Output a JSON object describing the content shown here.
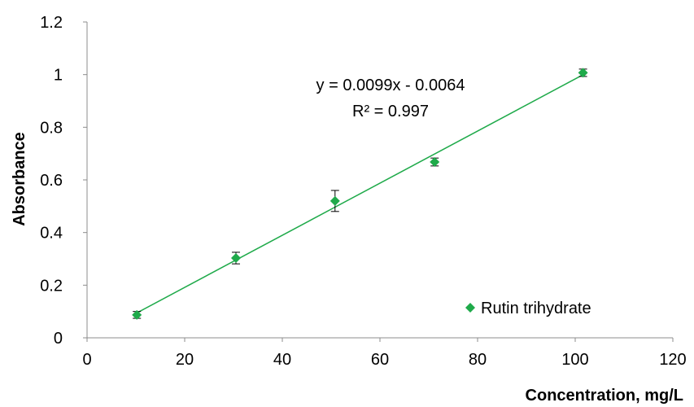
{
  "chart_data": {
    "type": "scatter",
    "xlabel": "Concentration, mg/L",
    "ylabel": "Absorbance",
    "xlim": [
      0,
      120
    ],
    "ylim": [
      0,
      1.2
    ],
    "xticks": [
      0,
      20,
      40,
      60,
      80,
      100,
      120
    ],
    "yticks": [
      0,
      0.2,
      0.4,
      0.6,
      0.8,
      1,
      1.2
    ],
    "xtick_labels": [
      "0",
      "20",
      "40",
      "60",
      "80",
      "100",
      "120"
    ],
    "ytick_labels": [
      "0",
      "0.2",
      "0.4",
      "0.6",
      "0.8",
      "1",
      "1.2"
    ],
    "grid": false,
    "legend_position": "bottom-right",
    "series": [
      {
        "name": "Rutin trihydrate",
        "color": "#1faa4a",
        "marker": "diamond",
        "points": [
          {
            "x": 10.2,
            "y": 0.087,
            "err": 0.013
          },
          {
            "x": 30.5,
            "y": 0.303,
            "err": 0.022
          },
          {
            "x": 50.8,
            "y": 0.52,
            "err": 0.04
          },
          {
            "x": 71.2,
            "y": 0.668,
            "err": 0.015
          },
          {
            "x": 101.6,
            "y": 1.007,
            "err": 0.014
          }
        ]
      }
    ],
    "trendline": {
      "type": "linear",
      "slope": 0.0099,
      "intercept": -0.0064,
      "x_range": [
        10.2,
        101.6
      ],
      "color": "#1faa4a",
      "equation": "y = 0.0099x - 0.0064",
      "r_squared": "R² = 0.997"
    }
  }
}
